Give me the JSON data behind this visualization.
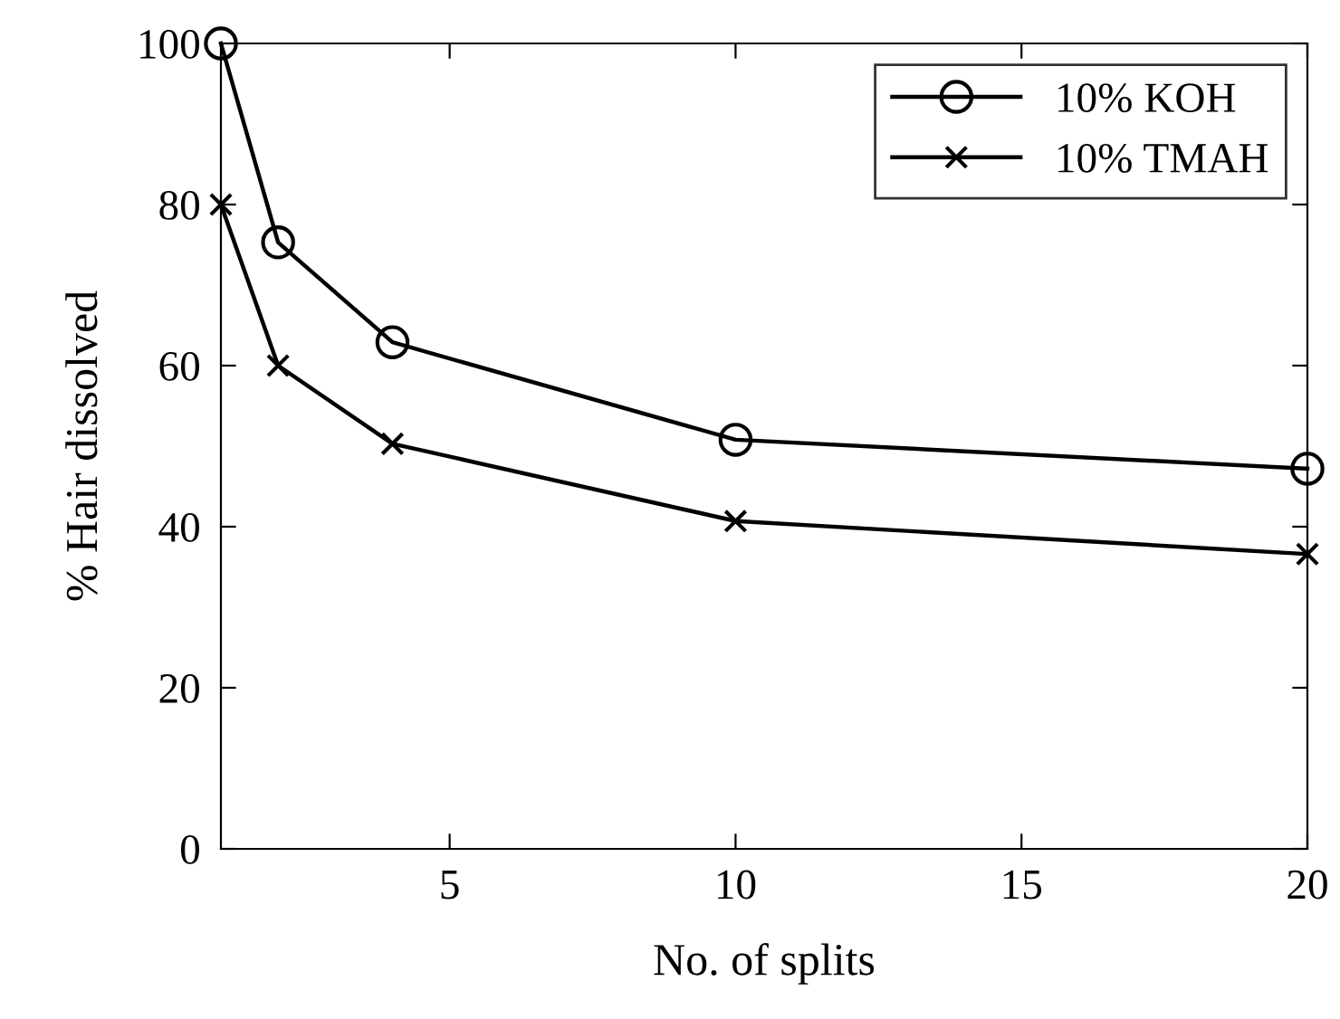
{
  "chart_data": {
    "type": "line",
    "xlabel": "No. of splits",
    "ylabel": "% Hair dissolved",
    "x": [
      1,
      2,
      4,
      10,
      20
    ],
    "series": [
      {
        "name": "10% KOH",
        "color": "#000000",
        "marker": "circle",
        "values": [
          100,
          75.3,
          62.9,
          50.8,
          47.2
        ]
      },
      {
        "name": "10% TMAH",
        "color": "#000000",
        "marker": "cross",
        "values": [
          80,
          60,
          50.3,
          40.7,
          36.6
        ]
      }
    ],
    "xlim": [
      1,
      20
    ],
    "xticks": [
      5,
      10,
      15,
      20
    ],
    "ylim": [
      0,
      100
    ],
    "yticks": [
      0,
      20,
      40,
      60,
      80,
      100
    ],
    "grid": false,
    "legend": "top right",
    "line_style": "solid"
  }
}
